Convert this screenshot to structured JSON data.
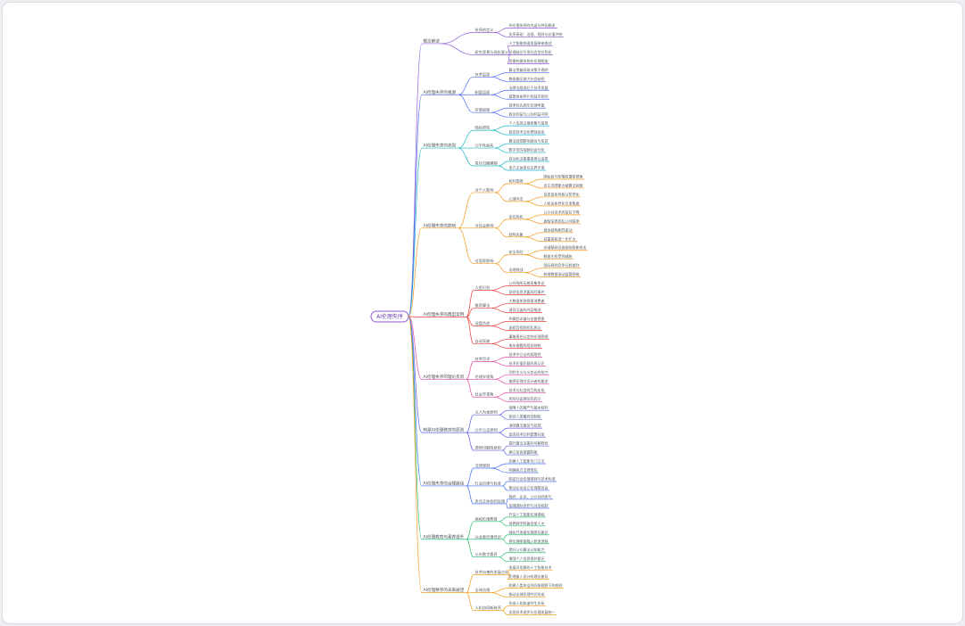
{
  "root": {
    "label": "AI伦理失序"
  },
  "colors": {
    "root_border": "#8e5bd6",
    "branches": [
      "#8e5bd6",
      "#4a6cf7",
      "#19b6c8",
      "#f39a1e",
      "#e8413b",
      "#e84aa6",
      "#5a5ee8",
      "#3d6ff0",
      "#2fbf71",
      "#f4a020"
    ]
  },
  "branches": [
    {
      "label": "概念解读",
      "children": [
        {
          "label": "失序的定义",
          "children": [
            "AI伦理失序的内涵与特征概述",
            "失序表现：治理、规则与价值冲突"
          ]
        },
        {
          "label": "研究背景与现实意义",
          "children": [
            "人工智能快速发展带来挑战",
            "伦理缺位引发社会信任危机",
            "亟需构建系统化伦理框架"
          ]
        }
      ]
    },
    {
      "label": "AI伦理失序的根源",
      "children": [
        {
          "label": "技术层面",
          "children": [
            "算法黑箱导致决策不透明",
            "数据偏见放大社会歧视"
          ]
        },
        {
          "label": "制度层面",
          "children": [
            "法律法规滞后于技术发展",
            "监管体系碎片化缺乏协同"
          ]
        },
        {
          "label": "价值层面",
          "children": [
            "效率优先挤压伦理考量",
            "商业利益与公共利益冲突"
          ]
        }
      ]
    },
    {
      "label": "AI伦理失序的表现",
      "children": [
        {
          "label": "隐私侵犯",
          "children": [
            "个人信息过度收集与滥用",
            "监控技术泛化侵蚀自由"
          ]
        },
        {
          "label": "公平性缺失",
          "children": [
            "算法歧视影响就业与信贷",
            "数字鸿沟加剧社会分化"
          ]
        },
        {
          "label": "责任归属模糊",
          "children": [
            "自动化决策事故难以追责",
            "多方主体责任边界不清"
          ]
        }
      ]
    },
    {
      "label": "AI伦理失序的影响",
      "children": [
        {
          "label": "对个人影响",
          "children": [
            {
              "label": "权利受损",
              "children": [
                "隐私权与知情权遭受侵害",
                "自主选择能力被算法削弱"
              ]
            },
            {
              "label": "心理冲击",
              "children": [
                "信息茧房导致认知窄化",
                "人机关系异化引发焦虑"
              ]
            }
          ]
        },
        {
          "label": "对社会影响",
          "children": [
            {
              "label": "信任危机",
              "children": [
                "公众对技术的信任下降",
                "虚假信息扰乱公共秩序"
              ]
            },
            {
              "label": "结构失衡",
              "children": [
                "就业结构剧烈变动",
                "贫富差距进一步扩大"
              ]
            }
          ]
        },
        {
          "label": "对国家影响",
          "children": [
            {
              "label": "安全风险",
              "children": [
                "关键基础设施面临智能攻击",
                "数据主权受到威胁"
              ]
            },
            {
              "label": "治理挑战",
              "children": [
                "国际规则竞争日趋激烈",
                "跨境数据流动监管困难"
              ]
            }
          ]
        }
      ]
    },
    {
      "label": "AI伦理失序的典型案例",
      "children": [
        {
          "label": "人脸识别",
          "children": [
            "公共场所无感采集争议",
            "身份信息泄露风险事件"
          ]
        },
        {
          "label": "推荐算法",
          "children": [
            "大数据杀熟损害消费者",
            "诱导沉迷的内容推送"
          ]
        },
        {
          "label": "深度伪造",
          "children": [
            "AI换脸诈骗与名誉侵害",
            "虚假音视频扰乱舆论"
          ]
        },
        {
          "label": "自动驾驶",
          "children": [
            "事故责任认定的伦理困境",
            "电车难题的现实映射"
          ]
        }
      ]
    },
    {
      "label": "AI伦理失序的理论反思",
      "children": [
        {
          "label": "技术哲学",
          "children": [
            "技术中立论的局限性",
            "技术价值负载的再认识"
          ]
        },
        {
          "label": "伦理学视角",
          "children": [
            "功利主义与义务论的张力",
            "美德伦理对设计者的要求"
          ]
        },
        {
          "label": "社会学视角",
          "children": [
            "技术与社会的互构关系",
            "风险社会理论的启示"
          ]
        }
      ]
    },
    {
      "label": "构建AI伦理秩序的原则",
      "children": [
        {
          "label": "以人为本原则",
          "children": [
            "保障人的尊严与基本权利",
            "坚持人类最终控制权"
          ]
        },
        {
          "label": "公平公正原则",
          "children": [
            "消除算法偏见与歧视",
            "促进技术红利普惠共享"
          ]
        },
        {
          "label": "透明可解释原则",
          "children": [
            "提升算法决策的可解释性",
            "建立信息披露制度"
          ]
        }
      ]
    },
    {
      "label": "AI伦理失序的治理路径",
      "children": [
        {
          "label": "法律规制",
          "children": [
            "完善人工智能专门立法",
            "明确各方法律责任"
          ]
        },
        {
          "label": "行业自律与标准",
          "children": [
            "制定行业伦理准则与技术标准",
            "推动企业设立伦理委员会"
          ]
        },
        {
          "label": "多元主体协同治理",
          "children": [
            "政府、企业、公众共同参与",
            "加强国际合作与对话机制"
          ]
        }
      ]
    },
    {
      "label": "AI伦理教育与素养提升",
      "children": [
        {
          "label": "高校伦理教育",
          "children": [
            "开设人工智能伦理课程",
            "培养跨学科复合型人才"
          ]
        },
        {
          "label": "从业者伦理培训",
          "children": [
            "强化开发者伦理责任意识",
            "将伦理审查融入研发流程"
          ]
        },
        {
          "label": "公众数字素养",
          "children": [
            "提升公众算法认知能力",
            "增强个人信息保护意识"
          ]
        }
      ]
    },
    {
      "label": "AI伦理秩序的未来展望",
      "children": [
        {
          "label": "技术向善的发展方向",
          "children": [
            "发展可信赖的人工智能技术",
            "伦理嵌入设计的理念普及"
          ]
        },
        {
          "label": "全球治理",
          "children": [
            "构建人类命运共同体视野下的规则",
            "推动全球伦理共识形成"
          ]
        },
        {
          "label": "人机协同新秩序",
          "children": [
            "形成人机和谐共生关系",
            "实现技术进步与伦理发展统一"
          ]
        }
      ]
    }
  ]
}
